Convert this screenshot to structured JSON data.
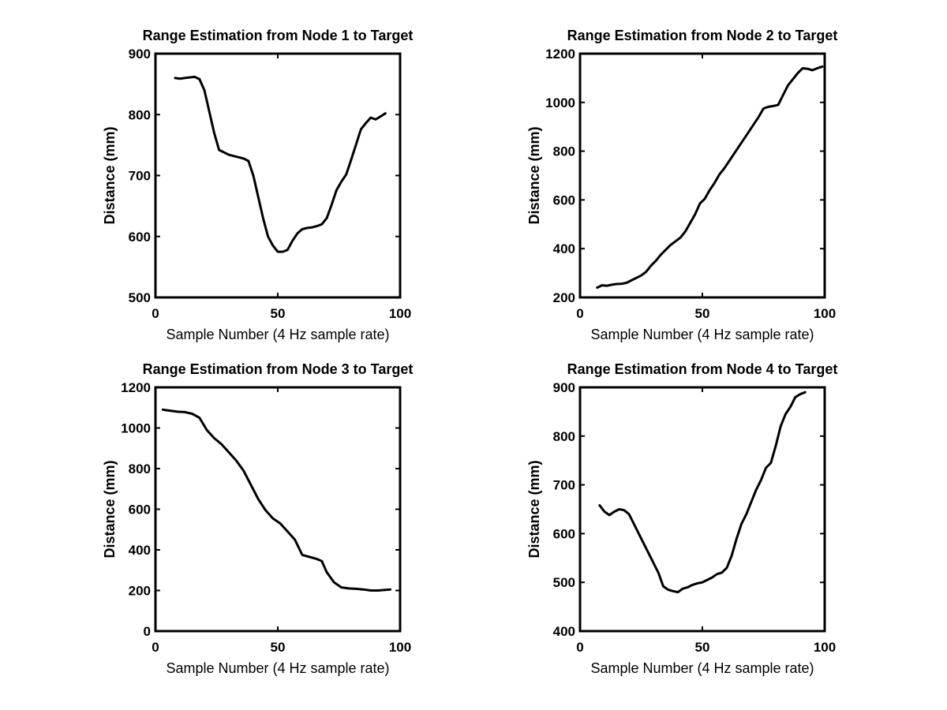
{
  "chart_data": [
    {
      "type": "line",
      "title": "Range Estimation from Node 1 to Target",
      "xlabel": "Sample Number (4 Hz sample rate)",
      "ylabel": "Distance (mm)",
      "xlim": [
        0,
        100
      ],
      "ylim": [
        500,
        900
      ],
      "xticks": [
        "0",
        "50",
        "100"
      ],
      "yticks": [
        "500",
        "600",
        "700",
        "800",
        "900"
      ],
      "grid": false,
      "series": [
        {
          "color": "#000000",
          "x": [
            8,
            10,
            12,
            14,
            16,
            18,
            20,
            22,
            24,
            26,
            28,
            30,
            32,
            34,
            36,
            38,
            40,
            42,
            44,
            46,
            48,
            50,
            52,
            54,
            56,
            58,
            60,
            62,
            64,
            66,
            68,
            70,
            72,
            74,
            76,
            78,
            80,
            82,
            84,
            86,
            88,
            90,
            92,
            94
          ],
          "y": [
            860,
            859,
            860,
            861,
            862,
            858,
            840,
            805,
            770,
            742,
            738,
            734,
            732,
            730,
            728,
            724,
            700,
            665,
            630,
            600,
            585,
            575,
            575,
            578,
            593,
            605,
            612,
            614,
            615,
            617,
            620,
            630,
            652,
            676,
            690,
            702,
            726,
            751,
            776,
            786,
            795,
            792,
            797,
            802
          ]
        }
      ]
    },
    {
      "type": "line",
      "title": "Range Estimation from Node 2 to Target",
      "xlabel": "Sample Number (4 Hz sample rate)",
      "ylabel": "Distance (mm)",
      "xlim": [
        0,
        100
      ],
      "ylim": [
        200,
        1200
      ],
      "xticks": [
        "0",
        "50",
        "100"
      ],
      "yticks": [
        "200",
        "400",
        "600",
        "800",
        "1000",
        "1200"
      ],
      "grid": false,
      "series": [
        {
          "color": "#000000",
          "x": [
            7,
            9,
            11,
            13,
            15,
            17,
            19,
            21,
            23,
            25,
            27,
            29,
            31,
            33,
            35,
            37,
            39,
            41,
            43,
            45,
            47,
            49,
            51,
            53,
            55,
            57,
            59,
            61,
            63,
            65,
            67,
            69,
            71,
            73,
            75,
            77,
            79,
            81,
            83,
            85,
            87,
            89,
            91,
            93,
            95,
            97,
            99
          ],
          "y": [
            240,
            250,
            248,
            252,
            255,
            256,
            260,
            270,
            280,
            290,
            305,
            330,
            350,
            375,
            395,
            415,
            430,
            445,
            470,
            505,
            540,
            585,
            605,
            640,
            670,
            705,
            730,
            760,
            790,
            820,
            850,
            880,
            910,
            940,
            975,
            982,
            985,
            990,
            1030,
            1070,
            1095,
            1120,
            1140,
            1138,
            1132,
            1140,
            1147
          ]
        }
      ]
    },
    {
      "type": "line",
      "title": "Range Estimation from Node 3 to Target",
      "xlabel": "Sample Number (4 Hz sample rate)",
      "ylabel": "Distance (mm)",
      "xlim": [
        0,
        100
      ],
      "ylim": [
        0,
        1200
      ],
      "xticks": [
        "0",
        "50",
        "100"
      ],
      "yticks": [
        "0",
        "200",
        "400",
        "600",
        "800",
        "1000",
        "1200"
      ],
      "grid": false,
      "series": [
        {
          "color": "#000000",
          "x": [
            3,
            6,
            9,
            12,
            15,
            18,
            21,
            24,
            27,
            30,
            33,
            36,
            39,
            42,
            45,
            48,
            51,
            54,
            57,
            60,
            63,
            66,
            68,
            70,
            73,
            76,
            79,
            82,
            85,
            88,
            91,
            94,
            96
          ],
          "y": [
            1090,
            1085,
            1080,
            1078,
            1070,
            1050,
            990,
            950,
            920,
            880,
            840,
            790,
            720,
            650,
            595,
            555,
            530,
            490,
            450,
            375,
            365,
            355,
            345,
            290,
            240,
            215,
            210,
            208,
            205,
            200,
            200,
            203,
            205
          ]
        }
      ]
    },
    {
      "type": "line",
      "title": "Range Estimation from Node 4 to Target",
      "xlabel": "Sample Number (4 Hz sample rate)",
      "ylabel": "Distance (mm)",
      "xlim": [
        0,
        100
      ],
      "ylim": [
        400,
        900
      ],
      "xticks": [
        "0",
        "50",
        "100"
      ],
      "yticks": [
        "400",
        "500",
        "600",
        "700",
        "800",
        "900"
      ],
      "grid": false,
      "series": [
        {
          "color": "#000000",
          "x": [
            8,
            10,
            12,
            14,
            16,
            18,
            20,
            22,
            24,
            26,
            28,
            30,
            32,
            34,
            36,
            38,
            40,
            42,
            44,
            46,
            48,
            50,
            52,
            54,
            56,
            58,
            60,
            62,
            64,
            66,
            68,
            70,
            72,
            74,
            76,
            78,
            80,
            82,
            84,
            86,
            88,
            90,
            92
          ],
          "y": [
            658,
            645,
            638,
            645,
            650,
            648,
            640,
            620,
            600,
            580,
            560,
            540,
            520,
            492,
            485,
            482,
            480,
            487,
            490,
            495,
            498,
            500,
            505,
            510,
            517,
            520,
            530,
            555,
            590,
            620,
            640,
            665,
            690,
            710,
            735,
            745,
            780,
            820,
            845,
            860,
            880,
            886,
            890
          ]
        }
      ]
    }
  ]
}
